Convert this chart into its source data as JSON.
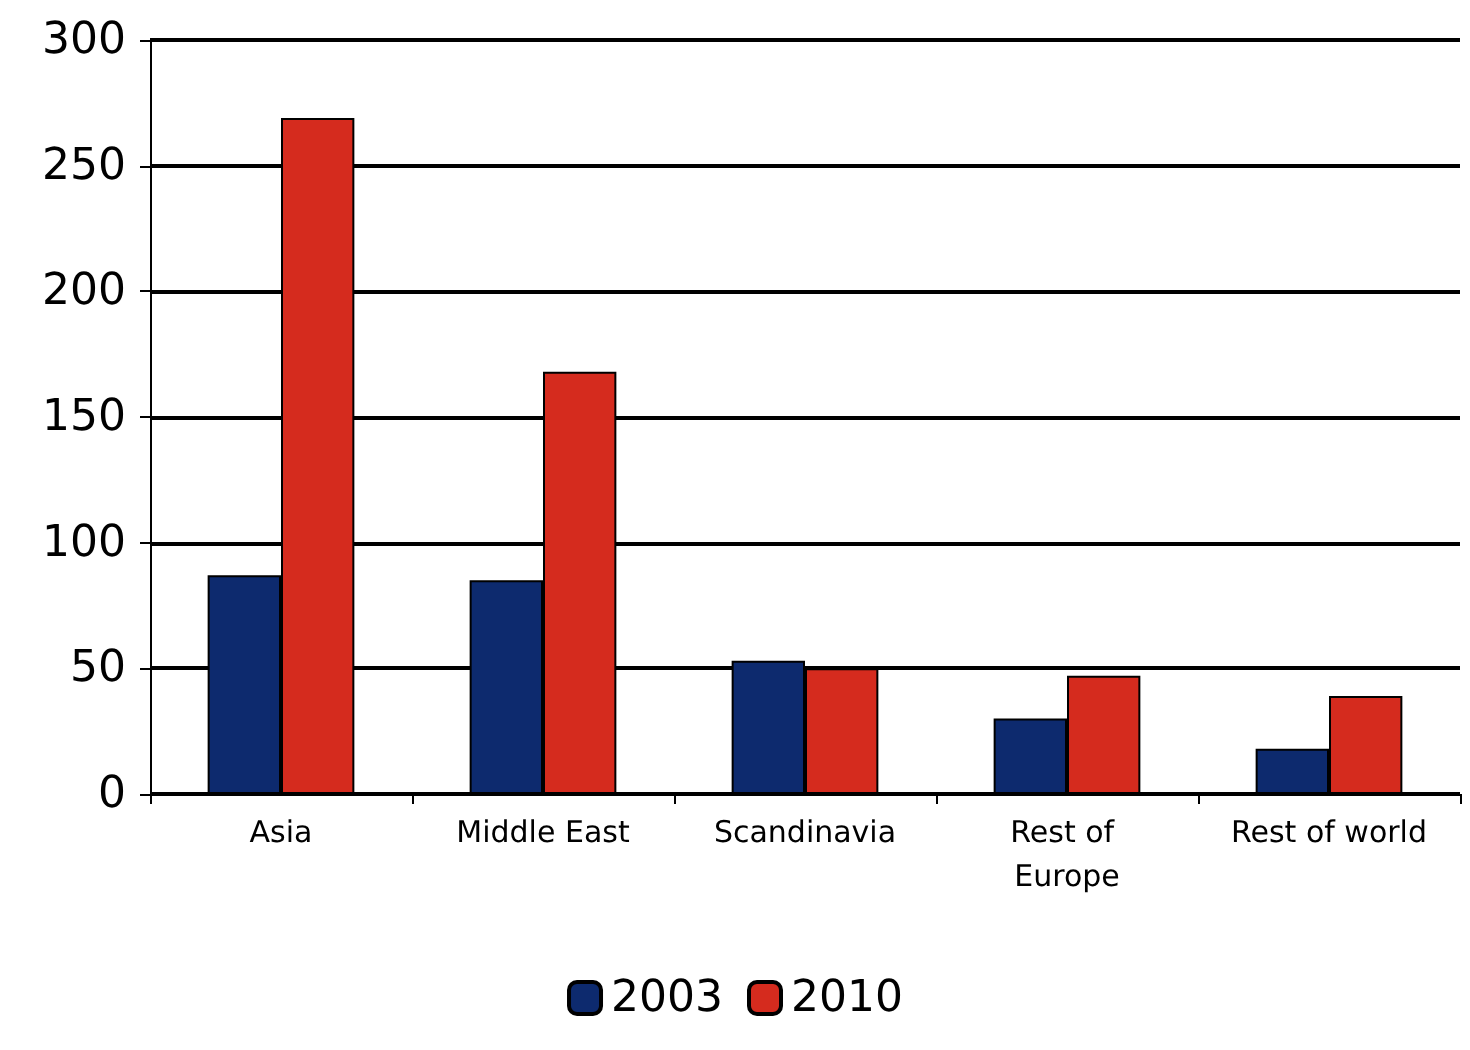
{
  "chart_data": {
    "type": "bar",
    "categories": [
      "Asia",
      "Middle East",
      "Scandinavia",
      "Rest of Europe",
      "Rest of world"
    ],
    "series": [
      {
        "name": "2003",
        "color": "#0d2a6e",
        "values": [
          87,
          85,
          53,
          30,
          18
        ]
      },
      {
        "name": "2010",
        "color": "#d52b1e",
        "values": [
          269,
          168,
          50,
          47,
          39
        ]
      }
    ],
    "ylim": [
      0,
      300
    ],
    "yticks": [
      0,
      50,
      100,
      150,
      200,
      250,
      300
    ],
    "grid": "y",
    "legend": "bottom"
  }
}
